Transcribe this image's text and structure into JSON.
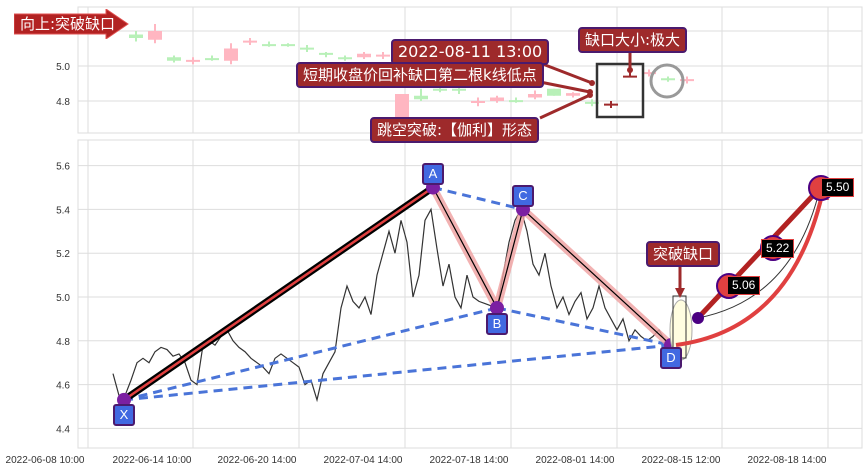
{
  "chart_data": [
    {
      "type": "candlestick",
      "panel": "top",
      "yticks": [
        "5.0",
        "4.8"
      ],
      "ylim": [
        4.63,
        5.3
      ],
      "grid": true,
      "candles": [
        {
          "o": 5.16,
          "c": 5.18,
          "h": 5.2,
          "l": 5.14,
          "color": "#b8f0b8"
        },
        {
          "o": 5.15,
          "c": 5.2,
          "h": 5.24,
          "l": 5.13,
          "color": "#ffb6c1"
        },
        {
          "o": 5.03,
          "c": 5.05,
          "h": 5.06,
          "l": 5.02,
          "color": "#b8f0b8"
        },
        {
          "o": 5.03,
          "c": 5.035,
          "h": 5.05,
          "l": 5.01,
          "color": "#ffb6c1"
        },
        {
          "o": 5.035,
          "c": 5.045,
          "h": 5.06,
          "l": 5.03,
          "color": "#b8f0b8"
        },
        {
          "o": 5.03,
          "c": 5.1,
          "h": 5.13,
          "l": 5.01,
          "color": "#ffb6c1"
        },
        {
          "o": 5.14,
          "c": 5.145,
          "h": 5.16,
          "l": 5.12,
          "color": "#ffb6c1"
        },
        {
          "o": 5.12,
          "c": 5.125,
          "h": 5.14,
          "l": 5.11,
          "color": "#b8f0b8"
        },
        {
          "o": 5.12,
          "c": 5.125,
          "h": 5.13,
          "l": 5.11,
          "color": "#b8f0b8"
        },
        {
          "o": 5.1,
          "c": 5.105,
          "h": 5.12,
          "l": 5.08,
          "color": "#b8f0b8"
        },
        {
          "o": 5.07,
          "c": 5.075,
          "h": 5.08,
          "l": 5.05,
          "color": "#b8f0b8"
        },
        {
          "o": 5.04,
          "c": 5.05,
          "h": 5.06,
          "l": 5.03,
          "color": "#b8f0b8"
        },
        {
          "o": 5.05,
          "c": 5.07,
          "h": 5.08,
          "l": 5.04,
          "color": "#ffb6c1"
        },
        {
          "o": 5.06,
          "c": 5.065,
          "h": 5.08,
          "l": 5.04,
          "color": "#ffb6c1"
        },
        {
          "o": 4.63,
          "c": 4.84,
          "h": 4.84,
          "l": 4.63,
          "color": "#ffb6c1"
        },
        {
          "o": 4.81,
          "c": 4.83,
          "h": 4.87,
          "l": 4.8,
          "color": "#b8f0b8"
        },
        {
          "o": 4.86,
          "c": 4.87,
          "h": 4.9,
          "l": 4.85,
          "color": "#b8f0b8"
        },
        {
          "o": 4.86,
          "c": 4.87,
          "h": 4.89,
          "l": 4.84,
          "color": "#b8f0b8"
        },
        {
          "o": 4.79,
          "c": 4.8,
          "h": 4.82,
          "l": 4.77,
          "color": "#ffb6c1"
        },
        {
          "o": 4.8,
          "c": 4.82,
          "h": 4.83,
          "l": 4.79,
          "color": "#ffb6c1"
        },
        {
          "o": 4.8,
          "c": 4.805,
          "h": 4.82,
          "l": 4.79,
          "color": "#b8f0b8"
        },
        {
          "o": 4.82,
          "c": 4.84,
          "h": 4.86,
          "l": 4.81,
          "color": "#ffb6c1"
        },
        {
          "o": 4.83,
          "c": 4.87,
          "h": 4.87,
          "l": 4.83,
          "color": "#b8f0b8"
        },
        {
          "o": 4.83,
          "c": 4.845,
          "h": 4.85,
          "l": 4.82,
          "color": "#ffb6c1"
        },
        {
          "o": 4.79,
          "c": 4.795,
          "h": 4.81,
          "l": 4.77,
          "color": "#b8f0b8"
        },
        {
          "o": 4.78,
          "c": 4.785,
          "h": 4.8,
          "l": 4.76,
          "color": "#9e2a2b"
        },
        {
          "o": 4.94,
          "c": 4.945,
          "h": 4.97,
          "l": 4.94,
          "color": "#9e2a2b"
        },
        {
          "o": 4.96,
          "c": 4.965,
          "h": 4.98,
          "l": 4.94,
          "color": "#ffb6c1"
        },
        {
          "o": 4.92,
          "c": 4.93,
          "h": 4.94,
          "l": 4.91,
          "color": "#b8f0b8"
        },
        {
          "o": 4.92,
          "c": 4.925,
          "h": 4.94,
          "l": 4.9,
          "color": "#ffb6c1"
        }
      ]
    },
    {
      "type": "line",
      "panel": "bottom",
      "yticks": [
        "5.6",
        "5.4",
        "5.2",
        "5.0",
        "4.8",
        "4.6",
        "4.4"
      ],
      "ylim": [
        4.33,
        5.72
      ],
      "grid": true,
      "xticks": [
        "2022-06-08 10:00",
        "2022-06-14 10:00",
        "2022-06-20 14:00",
        "2022-07-04 14:00",
        "2022-07-18 14:00",
        "2022-08-01 14:00",
        "2022-08-15 12:00",
        "2022-08-18 14:00"
      ],
      "price_series": [
        4.65,
        4.55,
        4.55,
        4.62,
        4.7,
        4.72,
        4.7,
        4.75,
        4.77,
        4.76,
        4.73,
        4.74,
        4.7,
        4.62,
        4.6,
        4.78,
        4.8,
        4.78,
        4.82,
        4.85,
        4.8,
        4.77,
        4.75,
        4.72,
        4.7,
        4.68,
        4.65,
        4.72,
        4.74,
        4.72,
        4.7,
        4.68,
        4.6,
        4.62,
        4.53,
        4.65,
        4.7,
        4.75,
        4.95,
        5.05,
        4.98,
        4.95,
        5.0,
        4.92,
        5.1,
        5.2,
        5.3,
        5.2,
        5.35,
        5.25,
        5.0,
        5.1,
        5.35,
        5.4,
        5.22,
        5.05,
        5.15,
        5.0,
        4.95,
        5.1,
        5.0,
        4.98,
        4.97,
        4.96,
        4.95,
        5.1,
        5.25,
        5.35,
        5.4,
        5.3,
        5.15,
        5.1,
        5.2,
        5.05,
        4.95,
        5.0,
        4.92,
        4.98,
        5.02,
        4.9,
        4.95,
        5.05,
        4.95,
        4.9,
        4.85,
        4.9,
        4.8,
        4.85,
        4.82,
        4.8,
        4.82,
        4.85,
        4.8,
        4.78,
        4.83,
        4.95,
        4.9
      ],
      "pattern_points": [
        {
          "label": "X",
          "value": 4.53
        },
        {
          "label": "A",
          "value": 5.5
        },
        {
          "label": "B",
          "value": 4.95
        },
        {
          "label": "C",
          "value": 5.4
        },
        {
          "label": "D",
          "value": 4.78
        }
      ],
      "projections": [
        "5.06",
        "5.22",
        "5.50"
      ]
    }
  ],
  "annotations": {
    "direction_tag": "向上:突破缺口",
    "date_label": "2022-08-11 13:00",
    "close_fill_label": "短期收盘价回补缺口第二根k线低点",
    "pattern_label": "跳空突破:【伽利】形态",
    "gap_size_label": "缺口大小:极大",
    "breakout_label": "突破缺口"
  },
  "colors": {
    "bull": "#b8f0b8",
    "bear": "#ffb6c1",
    "label_bg": "#9e2a2b",
    "point": "#4169e1",
    "dashed": "#4a74d8",
    "accent": "#e04040"
  }
}
